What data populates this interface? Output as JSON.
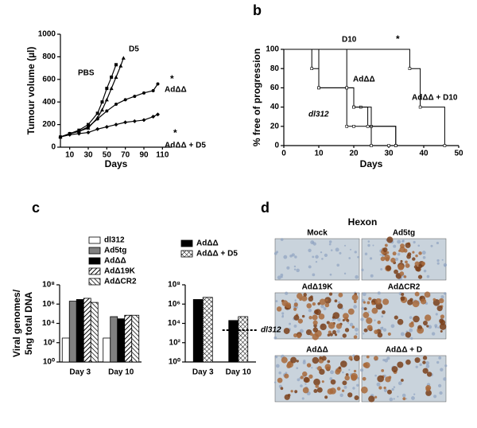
{
  "panels": [
    "b",
    "c",
    "d"
  ],
  "chart_data": [
    {
      "type": "line",
      "ylabel": "Tumour volume (µl)",
      "xlabel": "Days",
      "xlim": [
        0,
        120
      ],
      "xticks": [
        10,
        30,
        50,
        70,
        90,
        110
      ],
      "ylim": [
        0,
        1000
      ],
      "yticks": [
        0,
        200,
        400,
        600,
        800,
        1000
      ],
      "annotations": [
        "PBS",
        "D5",
        "AdΔΔ",
        "AdΔΔ + D5",
        "*",
        "*"
      ],
      "series": [
        {
          "name": "PBS",
          "color": "#000000",
          "marker": "square",
          "x": [
            0,
            10,
            20,
            30,
            40,
            45,
            50,
            55,
            60
          ],
          "values": [
            90,
            120,
            150,
            200,
            300,
            400,
            520,
            620,
            730
          ]
        },
        {
          "name": "D5",
          "color": "#000000",
          "marker": "triangle",
          "x": [
            0,
            10,
            20,
            30,
            40,
            45,
            50,
            55,
            60,
            65,
            68
          ],
          "values": [
            90,
            120,
            140,
            170,
            260,
            330,
            420,
            520,
            620,
            720,
            790
          ]
        },
        {
          "name": "AdΔΔ",
          "color": "#000000",
          "marker": "circle",
          "x": [
            0,
            10,
            20,
            30,
            40,
            50,
            60,
            70,
            80,
            90,
            100,
            105
          ],
          "values": [
            90,
            120,
            140,
            180,
            250,
            320,
            380,
            420,
            450,
            480,
            500,
            560
          ]
        },
        {
          "name": "AdΔΔ + D5",
          "color": "#000000",
          "marker": "diamond",
          "x": [
            0,
            10,
            20,
            30,
            40,
            50,
            60,
            70,
            80,
            90,
            100,
            105
          ],
          "values": [
            90,
            110,
            120,
            130,
            160,
            180,
            200,
            220,
            230,
            240,
            270,
            290
          ]
        }
      ]
    },
    {
      "type": "step",
      "ylabel": "% free of progression",
      "xlabel": "Days",
      "xlim": [
        0,
        50
      ],
      "xticks": [
        0,
        10,
        20,
        30,
        40,
        50
      ],
      "ylim": [
        0,
        100
      ],
      "yticks": [
        0,
        20,
        40,
        60,
        80,
        100
      ],
      "annotations": [
        "D10",
        "*",
        "AdΔΔ",
        "dl312",
        "AdΔΔ + D10"
      ],
      "series": [
        {
          "name": "dl312",
          "color": "#000000",
          "x": [
            0,
            8,
            10,
            18,
            20,
            25,
            30
          ],
          "values": [
            100,
            80,
            60,
            20,
            20,
            0,
            0
          ]
        },
        {
          "name": "AdΔΔ",
          "color": "#000000",
          "x": [
            0,
            10,
            18,
            20,
            22,
            25,
            32
          ],
          "values": [
            100,
            60,
            60,
            40,
            40,
            20,
            0
          ]
        },
        {
          "name": "D10",
          "color": "#000000",
          "x": [
            0,
            18,
            20,
            24,
            32
          ],
          "values": [
            100,
            60,
            40,
            20,
            0
          ]
        },
        {
          "name": "AdΔΔ + D10",
          "color": "#000000",
          "x": [
            0,
            36,
            39,
            46
          ],
          "values": [
            100,
            80,
            40,
            0
          ]
        }
      ]
    },
    {
      "type": "bar",
      "log": true,
      "ylabel": [
        "Viral genomes/",
        "5ng total DNA"
      ],
      "categories": [
        "Day 3",
        "Day 10"
      ],
      "ylim": [
        1,
        100000000
      ],
      "yticks": [
        {
          "value": 1,
          "label": "10⁰"
        },
        {
          "value": 100,
          "label": "10²"
        },
        {
          "value": 10000,
          "label": "10⁴"
        },
        {
          "value": 1000000,
          "label": "10⁶"
        },
        {
          "value": 100000000,
          "label": "10⁸"
        }
      ],
      "series": [
        {
          "name": "dl312",
          "color": "#ffffff",
          "pattern": "none",
          "values": [
            300,
            300
          ]
        },
        {
          "name": "Ad5tg",
          "color": "#808080",
          "pattern": "none",
          "values": [
            2000000,
            50000
          ]
        },
        {
          "name": "AdΔΔ",
          "color": "#000000",
          "pattern": "none",
          "values": [
            3000000,
            30000
          ]
        },
        {
          "name": "AdΔ19K",
          "color": "#000000",
          "pattern": "hatch",
          "values": [
            4000000,
            70000
          ]
        },
        {
          "name": "AdΔCR2",
          "color": "#000000",
          "pattern": "backhatch",
          "values": [
            1500000,
            70000
          ]
        }
      ]
    },
    {
      "type": "bar",
      "log": true,
      "categories": [
        "Day 3",
        "Day 10"
      ],
      "ylim": [
        1,
        100000000
      ],
      "yticks": [
        {
          "value": 1,
          "label": "10⁰"
        },
        {
          "value": 100,
          "label": "10²"
        },
        {
          "value": 10000,
          "label": "10⁴"
        },
        {
          "value": 1000000,
          "label": "10⁶"
        },
        {
          "value": 100000000,
          "label": "10⁸"
        }
      ],
      "reference": {
        "label": "dl312",
        "value": 2000
      },
      "series": [
        {
          "name": "AdΔΔ",
          "color": "#000000",
          "pattern": "none",
          "values": [
            3000000,
            20000
          ]
        },
        {
          "name": "AdΔΔ + D5",
          "color": "#000000",
          "pattern": "cross",
          "values": [
            5000000,
            50000
          ]
        }
      ]
    }
  ],
  "images": {
    "title": "Hexon",
    "labels": [
      "Mock",
      "Ad5tg",
      "AdΔ19K",
      "AdΔCR2",
      "AdΔΔ",
      "AdΔΔ + D"
    ]
  }
}
